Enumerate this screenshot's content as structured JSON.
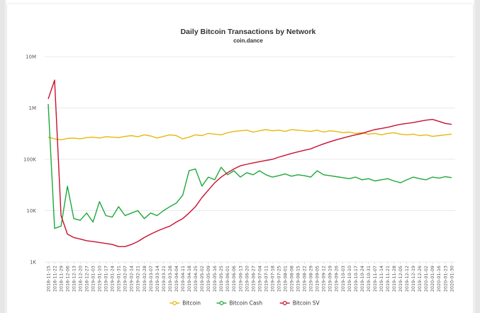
{
  "chart_data": {
    "type": "line",
    "title": "Daily Bitcoin Transactions by Network",
    "subtitle": "coin.dance",
    "xlabel": "",
    "ylabel": "",
    "y_scale": "log",
    "ylim": [
      1000,
      10000000
    ],
    "y_ticks": [
      "1K",
      "10K",
      "100K",
      "1M",
      "10M"
    ],
    "y_tick_values": [
      1000,
      10000,
      100000,
      1000000,
      10000000
    ],
    "x_ticks": [
      "2018-11-15",
      "2018-11-22",
      "2018-11-29",
      "2018-12-06",
      "2018-12-13",
      "2018-12-20",
      "2018-12-27",
      "2019-01-03",
      "2019-01-10",
      "2019-01-17",
      "2019-01-24",
      "2019-01-31",
      "2019-02-07",
      "2019-02-14",
      "2019-02-21",
      "2019-02-28",
      "2019-03-07",
      "2019-03-14",
      "2019-03-21",
      "2019-03-28",
      "2019-04-04",
      "2019-04-11",
      "2019-04-18",
      "2019-04-25",
      "2019-05-02",
      "2019-05-09",
      "2019-05-16",
      "2019-05-25",
      "2019-06-01",
      "2019-06-06",
      "2019-06-13",
      "2019-06-20",
      "2019-06-27",
      "2019-07-04",
      "2019-07-11",
      "2019-07-18",
      "2019-07-25",
      "2019-08-01",
      "2019-08-08",
      "2019-08-15",
      "2019-08-22",
      "2019-08-29",
      "2019-09-05",
      "2019-09-12",
      "2019-09-19",
      "2019-09-26",
      "2019-10-03",
      "2019-10-10",
      "2019-10-17",
      "2019-10-24",
      "2019-10-31",
      "2019-11-07",
      "2019-11-14",
      "2019-11-21",
      "2019-11-28",
      "2019-12-05",
      "2019-12-12",
      "2019-12-19",
      "2019-12-26",
      "2020-01-02",
      "2020-01-09",
      "2020-01-16",
      "2020-01-23",
      "2020-01-30"
    ],
    "grid": true,
    "legend_position": "bottom-center",
    "series": [
      {
        "name": "Bitcoin",
        "color": "#e8b80c",
        "values": [
          270000,
          250000,
          240000,
          255000,
          260000,
          250000,
          265000,
          270000,
          260000,
          275000,
          270000,
          265000,
          280000,
          290000,
          275000,
          300000,
          285000,
          260000,
          280000,
          300000,
          290000,
          250000,
          270000,
          300000,
          290000,
          320000,
          310000,
          300000,
          330000,
          350000,
          360000,
          370000,
          340000,
          360000,
          380000,
          360000,
          370000,
          350000,
          380000,
          370000,
          360000,
          350000,
          370000,
          340000,
          360000,
          350000,
          330000,
          340000,
          320000,
          330000,
          310000,
          320000,
          300000,
          320000,
          330000,
          310000,
          300000,
          310000,
          290000,
          300000,
          280000,
          290000,
          300000,
          310000
        ]
      },
      {
        "name": "Bitcoin Cash",
        "color": "#1fa83a",
        "values": [
          1200000,
          4500,
          5000,
          30000,
          7000,
          6500,
          9000,
          6000,
          15000,
          8000,
          7500,
          12000,
          8000,
          9000,
          10000,
          7000,
          9000,
          8000,
          10000,
          12000,
          14000,
          20000,
          60000,
          65000,
          30000,
          45000,
          40000,
          70000,
          50000,
          60000,
          45000,
          55000,
          50000,
          60000,
          50000,
          45000,
          48000,
          52000,
          47000,
          50000,
          48000,
          45000,
          60000,
          50000,
          48000,
          46000,
          44000,
          42000,
          45000,
          40000,
          42000,
          38000,
          40000,
          42000,
          38000,
          35000,
          40000,
          45000,
          42000,
          40000,
          45000,
          43000,
          46000,
          44000
        ]
      },
      {
        "name": "Bitcoin SV",
        "color": "#c8102e",
        "values": [
          1500000,
          3500000,
          8000,
          3500,
          3000,
          2800,
          2600,
          2500,
          2400,
          2300,
          2200,
          2000,
          2000,
          2200,
          2500,
          3000,
          3500,
          4000,
          4500,
          5000,
          6000,
          7000,
          9000,
          12000,
          18000,
          25000,
          35000,
          45000,
          55000,
          65000,
          75000,
          80000,
          85000,
          90000,
          95000,
          100000,
          110000,
          120000,
          130000,
          140000,
          150000,
          160000,
          180000,
          200000,
          220000,
          240000,
          260000,
          280000,
          300000,
          320000,
          350000,
          380000,
          400000,
          420000,
          450000,
          480000,
          500000,
          520000,
          550000,
          580000,
          600000,
          550000,
          500000,
          480000
        ]
      }
    ]
  }
}
